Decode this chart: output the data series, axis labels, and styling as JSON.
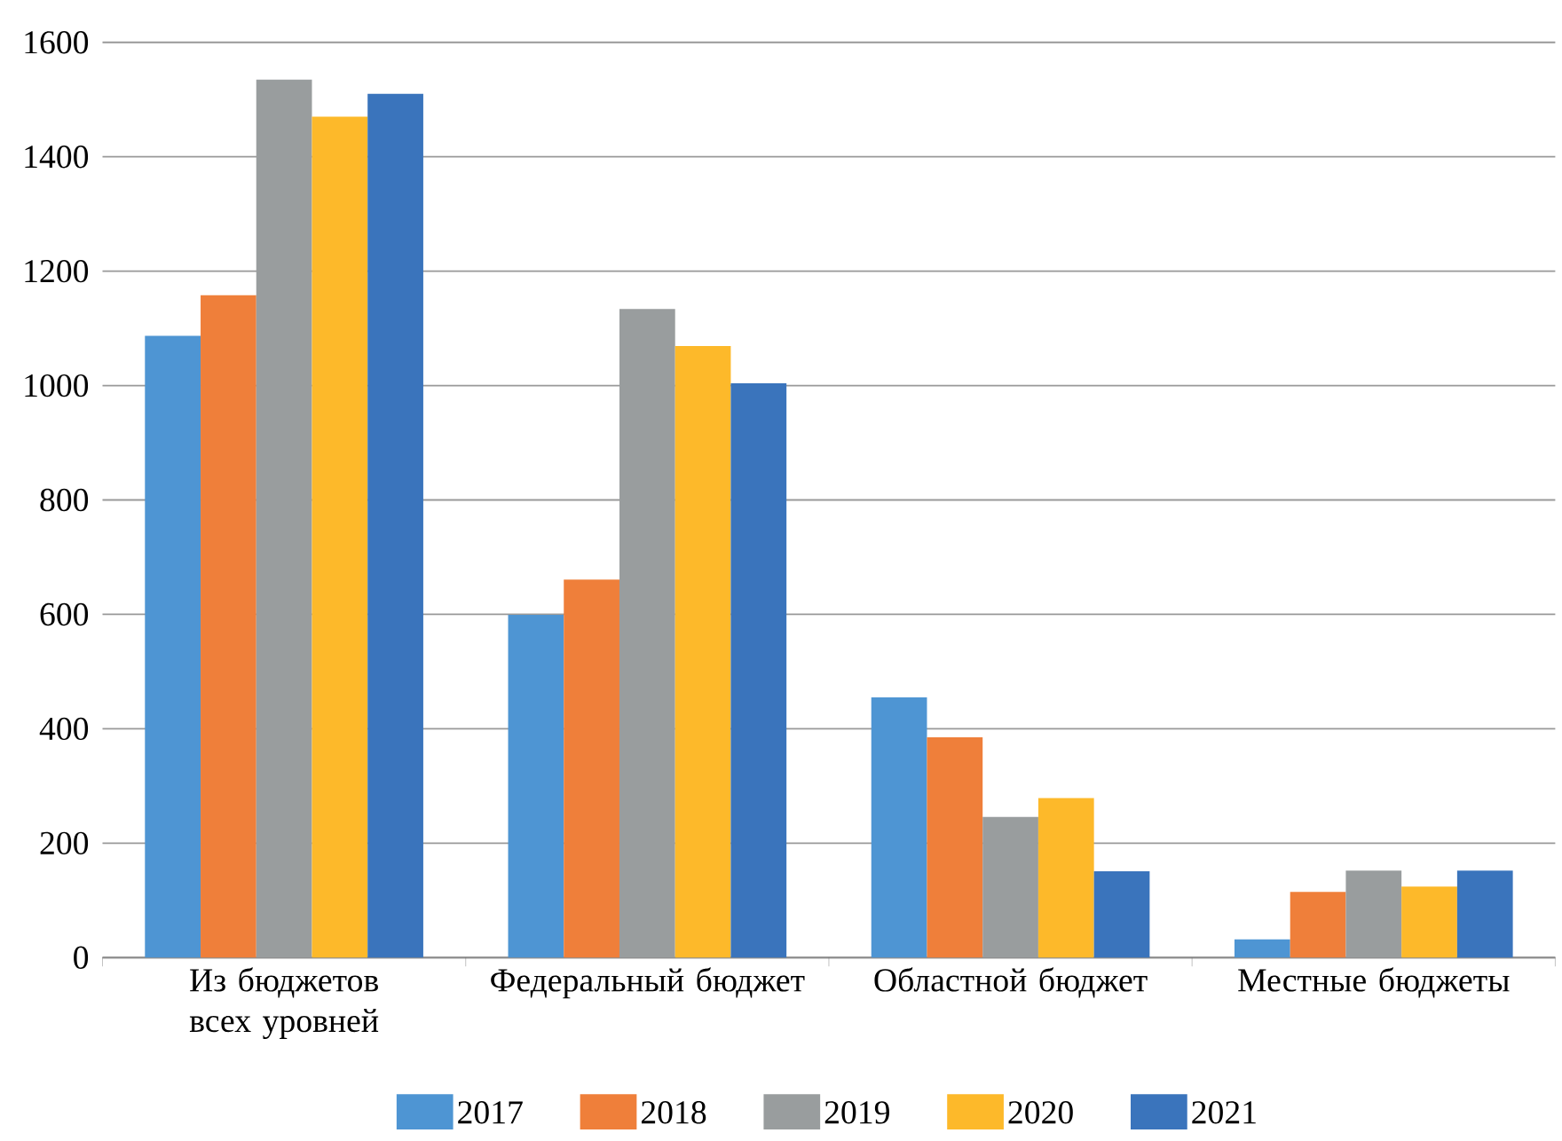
{
  "chart_data": {
    "type": "bar",
    "categories": [
      "Из бюджетов всех уровней",
      "Федеральный бюджет",
      "Областной бюджет",
      "Местные бюджеты"
    ],
    "series": [
      {
        "name": "2017",
        "color": "#4e95d3",
        "values": [
          1087,
          599,
          455,
          32
        ]
      },
      {
        "name": "2018",
        "color": "#ef7f3a",
        "values": [
          1158,
          661,
          385,
          115
        ]
      },
      {
        "name": "2019",
        "color": "#999d9e",
        "values": [
          1535,
          1134,
          246,
          152
        ]
      },
      {
        "name": "2020",
        "color": "#fdb92a",
        "values": [
          1470,
          1069,
          279,
          124
        ]
      },
      {
        "name": "2021",
        "color": "#3a74bc",
        "values": [
          1510,
          1004,
          151,
          152
        ]
      }
    ],
    "ylim": [
      0,
      1600
    ],
    "yticks": [
      0,
      200,
      400,
      600,
      800,
      1000,
      1200,
      1400,
      1600
    ],
    "grid": "y",
    "legend": "bottom"
  }
}
